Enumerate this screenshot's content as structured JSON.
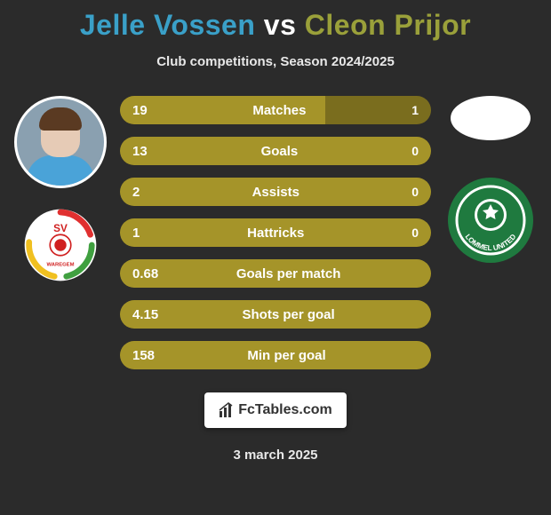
{
  "title": {
    "player1": "Jelle Vossen",
    "vs": "vs",
    "player2": "Cleon Prijor",
    "color1": "#3aa0c8",
    "color2": "#9aa03a"
  },
  "subtitle": "Club competitions, Season 2024/2025",
  "colors": {
    "fill": "#a59429",
    "track": "#7a6d1e",
    "text": "#ffffff",
    "background": "#2b2b2b"
  },
  "bars": [
    {
      "left": "19",
      "label": "Matches",
      "right": "1",
      "fill_pct": 66
    },
    {
      "left": "13",
      "label": "Goals",
      "right": "0",
      "fill_pct": 100
    },
    {
      "left": "2",
      "label": "Assists",
      "right": "0",
      "fill_pct": 100
    },
    {
      "left": "1",
      "label": "Hattricks",
      "right": "0",
      "fill_pct": 100
    },
    {
      "left": "0.68",
      "label": "Goals per match",
      "right": "",
      "fill_pct": 100
    },
    {
      "left": "4.15",
      "label": "Shots per goal",
      "right": "",
      "fill_pct": 100
    },
    {
      "left": "158",
      "label": "Min per goal",
      "right": "",
      "fill_pct": 100
    }
  ],
  "left_badge": {
    "bg": "#ffffff",
    "ring_colors": [
      "#e03030",
      "#40a040",
      "#f0c020"
    ],
    "text_top": "SV",
    "text_bottom": "WAREGEM"
  },
  "right_badge": {
    "bg": "#1f7a3f",
    "inner": "#ffffff",
    "text": "LOMMEL UNITED"
  },
  "footer": {
    "brand": "FcTables.com"
  },
  "date": "3 march 2025"
}
